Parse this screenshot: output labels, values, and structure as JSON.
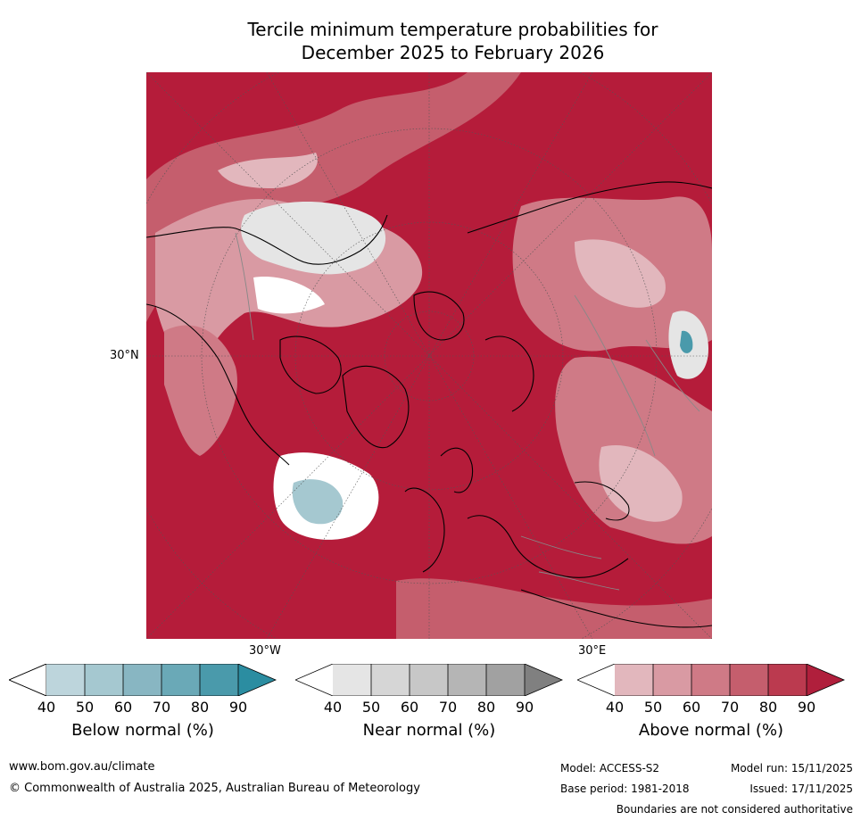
{
  "title": {
    "line1": "Tercile minimum temperature probabilities for",
    "line2": "December 2025 to February 2026"
  },
  "map": {
    "lat_label": "30°N",
    "lon_labels": [
      "30°W",
      "30°E"
    ]
  },
  "colorbars": [
    {
      "label": "Below normal (%)",
      "ticks": [
        "40",
        "50",
        "60",
        "70",
        "80",
        "90"
      ],
      "colors": [
        "#bdd5dc",
        "#a5c8d0",
        "#88b6c2",
        "#6aa9b7",
        "#4a9aab",
        "#2b8da1"
      ]
    },
    {
      "label": "Near normal (%)",
      "ticks": [
        "40",
        "50",
        "60",
        "70",
        "80",
        "90"
      ],
      "colors": [
        "#e5e5e5",
        "#d6d6d6",
        "#c7c7c7",
        "#b5b5b5",
        "#a1a1a1",
        "#808080"
      ]
    },
    {
      "label": "Above normal (%)",
      "ticks": [
        "40",
        "50",
        "60",
        "70",
        "80",
        "90"
      ],
      "colors": [
        "#e2b7bd",
        "#d99aa3",
        "#cf7a86",
        "#c55e6d",
        "#bb3a4f",
        "#b01f3c"
      ]
    }
  ],
  "footer": {
    "website": "www.bom.gov.au/climate",
    "copyright": "© Commonwealth of Australia 2025, Australian Bureau of Meteorology",
    "model": "Model: ACCESS-S2",
    "base_period": "Base period: 1981-2018",
    "model_run": "Model run: 15/11/2025",
    "issued": "Issued: 17/11/2025",
    "disclaimer": "Boundaries are not considered authoritative"
  }
}
